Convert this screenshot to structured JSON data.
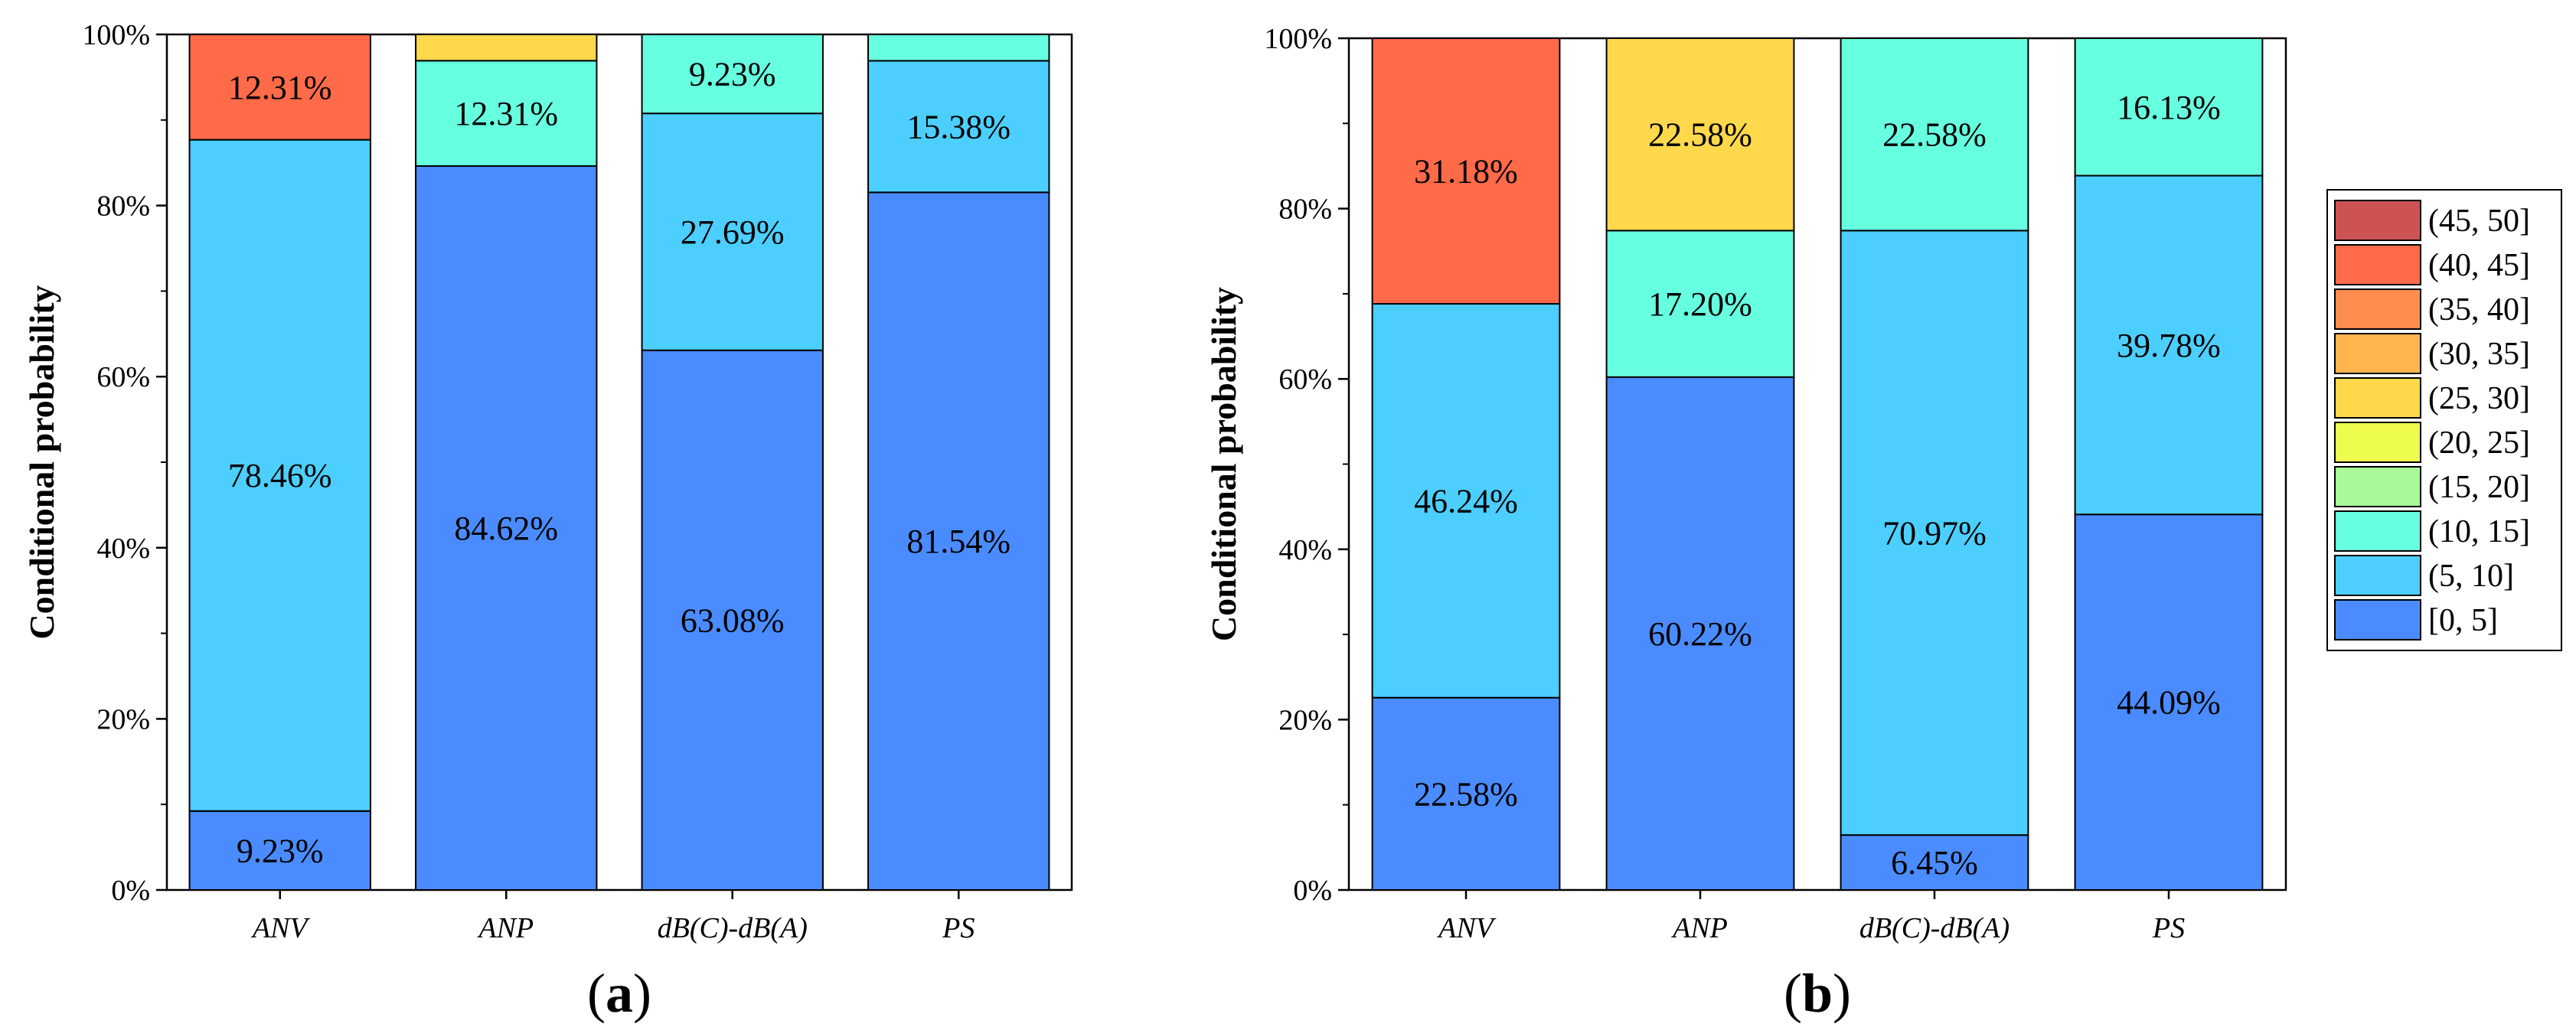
{
  "chart_data": [
    {
      "type": "bar",
      "stacked": true,
      "panel_label": "a",
      "ylabel": "Conditional probability",
      "xlabel": "",
      "ylim": [
        0,
        100
      ],
      "yticks": [
        "0%",
        "20%",
        "40%",
        "60%",
        "80%",
        "100%"
      ],
      "categories": [
        "ANV",
        "ANP",
        "dB(C)-dB(A)",
        "PS"
      ],
      "series": [
        {
          "name": "[0, 5]",
          "values": [
            9.23,
            84.62,
            63.08,
            81.54
          ],
          "labels": [
            "9.23%",
            "84.62%",
            "63.08%",
            "81.54%"
          ]
        },
        {
          "name": "(5, 10]",
          "values": [
            78.46,
            0,
            27.69,
            15.38
          ],
          "labels": [
            "78.46%",
            "",
            "27.69%",
            "15.38%"
          ]
        },
        {
          "name": "(10, 15]",
          "values": [
            0,
            12.31,
            9.23,
            3.08
          ],
          "labels": [
            "",
            "12.31%",
            "9.23%",
            ""
          ]
        },
        {
          "name": "(15, 20]",
          "values": [
            0,
            0,
            0,
            0
          ],
          "labels": [
            "",
            "",
            "",
            ""
          ]
        },
        {
          "name": "(20, 25]",
          "values": [
            0,
            0,
            0,
            0
          ],
          "labels": [
            "",
            "",
            "",
            ""
          ]
        },
        {
          "name": "(25, 30]",
          "values": [
            0,
            3.07,
            0,
            0
          ],
          "labels": [
            "",
            "",
            "",
            ""
          ]
        },
        {
          "name": "(30, 35]",
          "values": [
            0,
            0,
            0,
            0
          ],
          "labels": [
            "",
            "",
            "",
            ""
          ]
        },
        {
          "name": "(35, 40]",
          "values": [
            0,
            0,
            0,
            0
          ],
          "labels": [
            "",
            "",
            "",
            ""
          ]
        },
        {
          "name": "(40, 45]",
          "values": [
            12.31,
            0,
            0,
            0
          ],
          "labels": [
            "12.31%",
            "",
            "",
            ""
          ]
        },
        {
          "name": "(45, 50]",
          "values": [
            0,
            0,
            0,
            0
          ],
          "labels": [
            "",
            "",
            "",
            ""
          ]
        }
      ]
    },
    {
      "type": "bar",
      "stacked": true,
      "panel_label": "b",
      "ylabel": "Conditional probability",
      "xlabel": "",
      "ylim": [
        0,
        100
      ],
      "yticks": [
        "0%",
        "20%",
        "40%",
        "60%",
        "80%",
        "100%"
      ],
      "categories": [
        "ANV",
        "ANP",
        "dB(C)-dB(A)",
        "PS"
      ],
      "series": [
        {
          "name": "[0, 5]",
          "values": [
            22.58,
            60.22,
            6.45,
            44.09
          ],
          "labels": [
            "22.58%",
            "60.22%",
            "6.45%",
            "44.09%"
          ]
        },
        {
          "name": "(5, 10]",
          "values": [
            46.24,
            0,
            70.97,
            39.78
          ],
          "labels": [
            "46.24%",
            "",
            "70.97%",
            "39.78%"
          ]
        },
        {
          "name": "(10, 15]",
          "values": [
            0,
            17.2,
            22.58,
            16.13
          ],
          "labels": [
            "",
            "17.20%",
            "22.58%",
            "16.13%"
          ]
        },
        {
          "name": "(15, 20]",
          "values": [
            0,
            0,
            0,
            0
          ],
          "labels": [
            "",
            "",
            "",
            ""
          ]
        },
        {
          "name": "(20, 25]",
          "values": [
            0,
            0,
            0,
            0
          ],
          "labels": [
            "",
            "",
            "",
            ""
          ]
        },
        {
          "name": "(25, 30]",
          "values": [
            0,
            22.58,
            0,
            0
          ],
          "labels": [
            "",
            "22.58%",
            "",
            ""
          ]
        },
        {
          "name": "(30, 35]",
          "values": [
            0,
            0,
            0,
            0
          ],
          "labels": [
            "",
            "",
            "",
            ""
          ]
        },
        {
          "name": "(35, 40]",
          "values": [
            0,
            0,
            0,
            0
          ],
          "labels": [
            "",
            "",
            "",
            ""
          ]
        },
        {
          "name": "(40, 45]",
          "values": [
            31.18,
            0,
            0,
            0
          ],
          "labels": [
            "31.18%",
            "",
            "",
            ""
          ]
        },
        {
          "name": "(45, 50]",
          "values": [
            0,
            0,
            0,
            0
          ],
          "labels": [
            "",
            "",
            "",
            ""
          ]
        }
      ]
    }
  ],
  "legend": {
    "placement": "right",
    "entries": [
      {
        "label": "(45, 50]",
        "color": "#cd5353"
      },
      {
        "label": "(40, 45]",
        "color": "#ff6a48"
      },
      {
        "label": "(35, 40]",
        "color": "#ff8c4f"
      },
      {
        "label": "(30, 35]",
        "color": "#ffb54e"
      },
      {
        "label": "(25, 30]",
        "color": "#ffd84c"
      },
      {
        "label": "(20, 25]",
        "color": "#eefc4e"
      },
      {
        "label": "(15, 20]",
        "color": "#a9f99a"
      },
      {
        "label": "(10, 15]",
        "color": "#66ffe0"
      },
      {
        "label": "(5, 10]",
        "color": "#4ccfff"
      },
      {
        "label": "[0, 5]",
        "color": "#4a8cff"
      }
    ]
  },
  "series_colors": {
    "[0, 5]": "#4a8cff",
    "(5, 10]": "#4ccfff",
    "(10, 15]": "#66ffe0",
    "(15, 20]": "#a9f99a",
    "(20, 25]": "#eefc4e",
    "(25, 30]": "#ffd84c",
    "(30, 35]": "#ffb54e",
    "(35, 40]": "#ff8c4f",
    "(40, 45]": "#ff6a48",
    "(45, 50]": "#cd5353"
  }
}
